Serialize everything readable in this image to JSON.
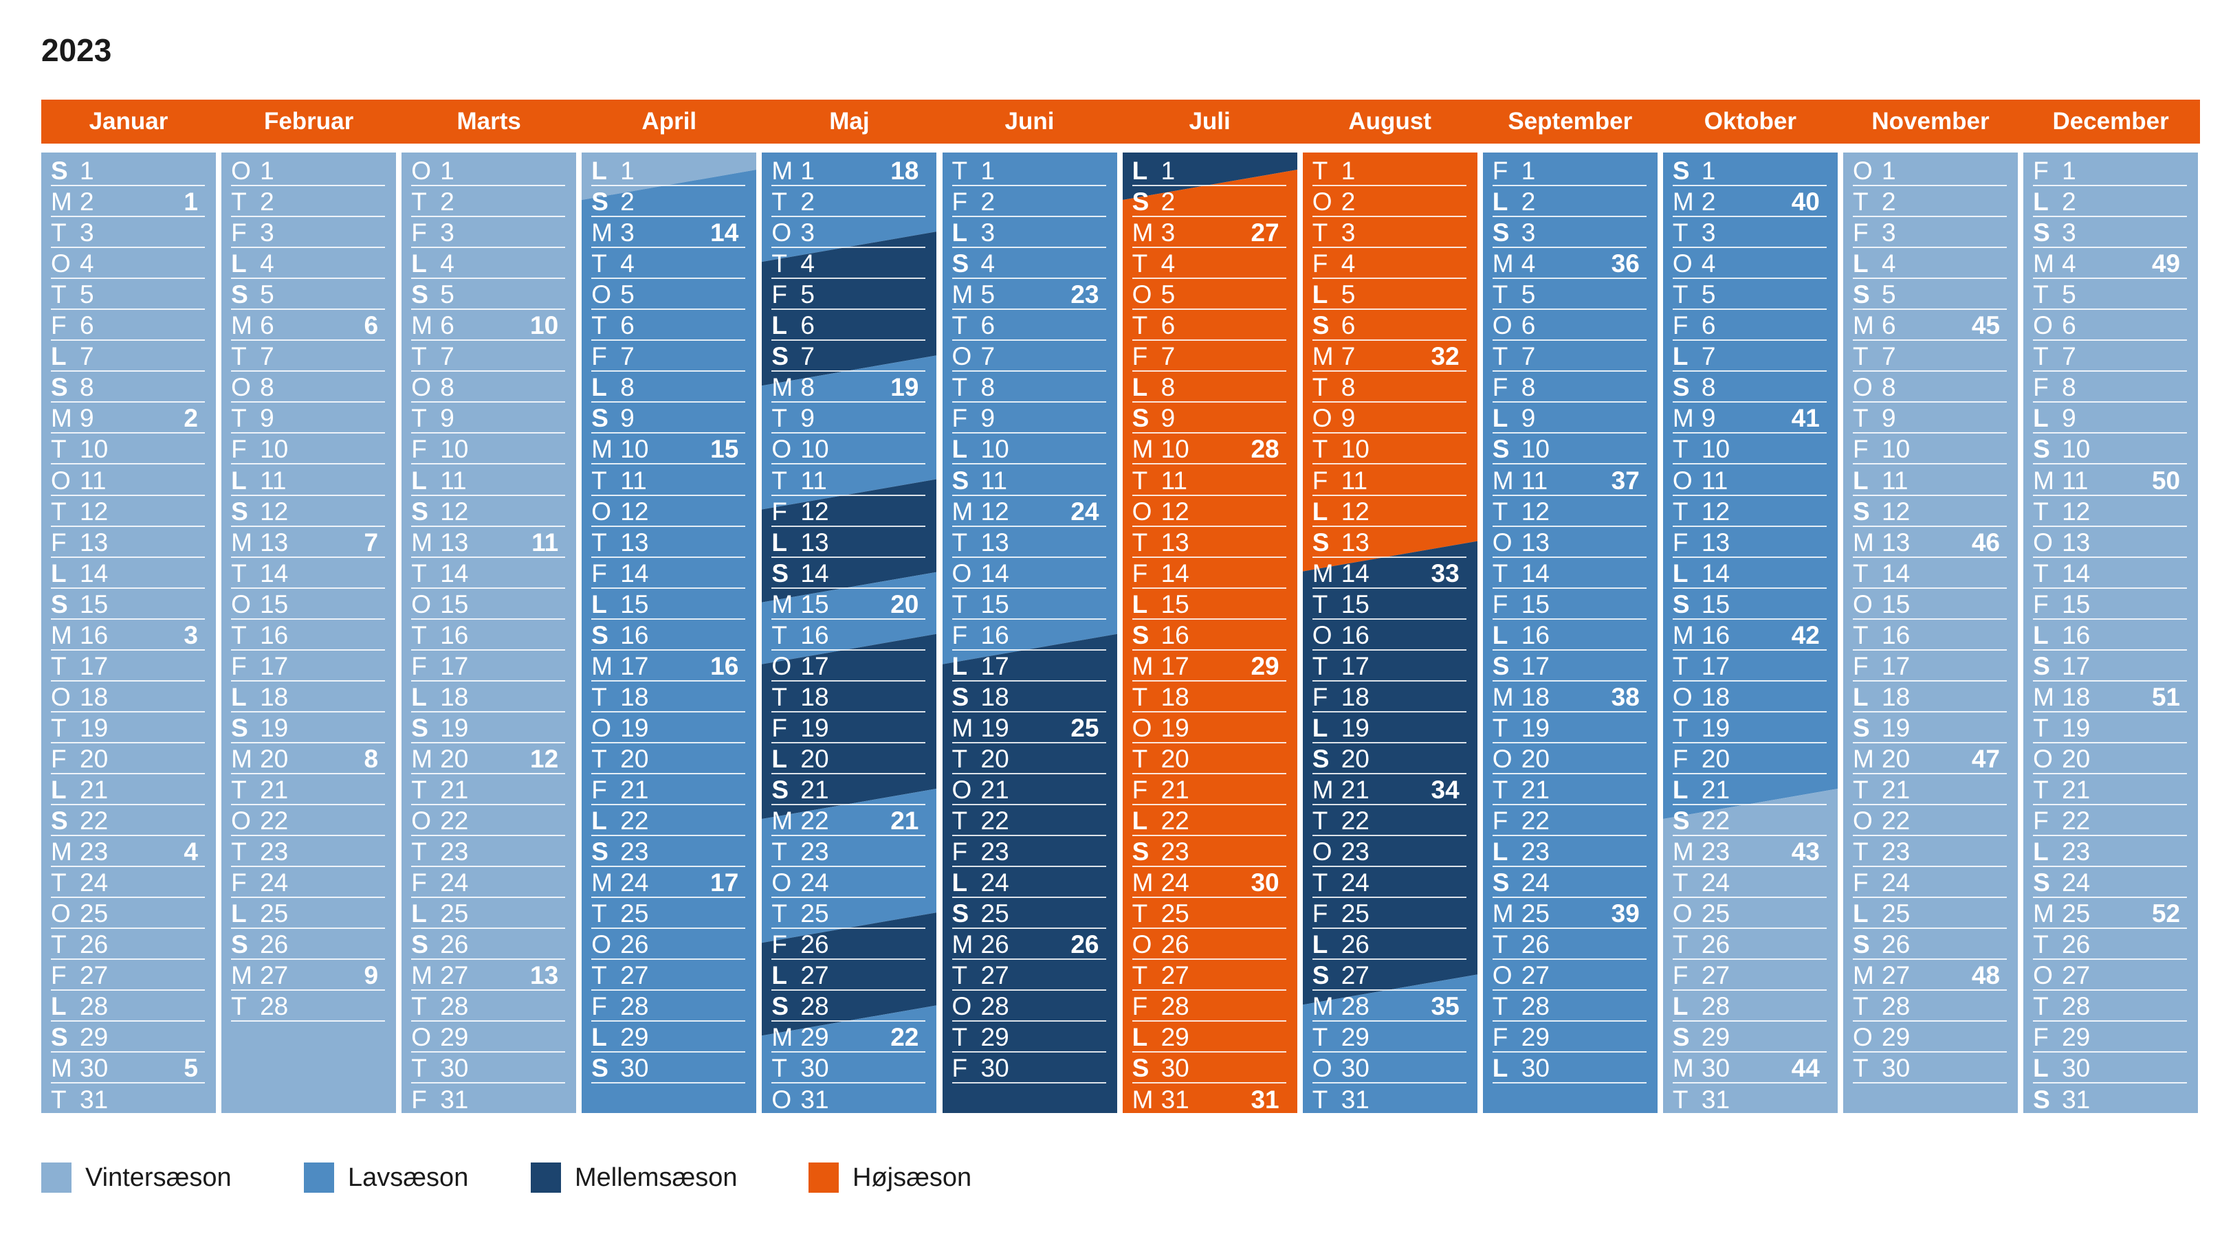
{
  "title": "2023",
  "colors": {
    "header": "#e8590c",
    "vinter": "#8bb0d3",
    "lav": "#4e8bc2",
    "mellem": "#1c446e",
    "hoj": "#e8590c"
  },
  "legend": [
    {
      "label": "Vintersæson",
      "season": "vinter"
    },
    {
      "label": "Lavsæson",
      "season": "lav"
    },
    {
      "label": "Mellemsæson",
      "season": "mellem"
    },
    {
      "label": "Højsæson",
      "season": "hoj"
    }
  ],
  "months": [
    {
      "name": "Januar",
      "first_weekday": 6,
      "days": 31,
      "weeks": {
        "2": "1",
        "9": "2",
        "16": "3",
        "23": "4",
        "30": "5"
      },
      "seasons": [
        {
          "season": "vinter",
          "from": 1,
          "to": 31
        }
      ]
    },
    {
      "name": "Februar",
      "first_weekday": 2,
      "days": 28,
      "weeks": {
        "6": "6",
        "13": "7",
        "20": "8",
        "27": "9"
      },
      "seasons": [
        {
          "season": "vinter",
          "from": 1,
          "to": 28
        }
      ]
    },
    {
      "name": "Marts",
      "first_weekday": 2,
      "days": 31,
      "weeks": {
        "6": "10",
        "13": "11",
        "20": "12",
        "27": "13"
      },
      "seasons": [
        {
          "season": "vinter",
          "from": 1,
          "to": 31
        }
      ]
    },
    {
      "name": "April",
      "first_weekday": 5,
      "days": 30,
      "weeks": {
        "3": "14",
        "10": "15",
        "17": "16",
        "24": "17"
      },
      "seasons": [
        {
          "season": "vinter",
          "from": 1,
          "to": 1
        },
        {
          "season": "lav",
          "from": 2,
          "to": 30
        }
      ]
    },
    {
      "name": "Maj",
      "first_weekday": 0,
      "days": 31,
      "weeks": {
        "1": "18",
        "8": "19",
        "15": "20",
        "22": "21",
        "29": "22"
      },
      "seasons": [
        {
          "season": "lav",
          "from": 1,
          "to": 3
        },
        {
          "season": "mellem",
          "from": 4,
          "to": 7
        },
        {
          "season": "lav",
          "from": 8,
          "to": 11
        },
        {
          "season": "mellem",
          "from": 12,
          "to": 14
        },
        {
          "season": "lav",
          "from": 15,
          "to": 16
        },
        {
          "season": "mellem",
          "from": 17,
          "to": 21
        },
        {
          "season": "lav",
          "from": 22,
          "to": 25
        },
        {
          "season": "mellem",
          "from": 26,
          "to": 28
        },
        {
          "season": "lav",
          "from": 29,
          "to": 31
        }
      ]
    },
    {
      "name": "Juni",
      "first_weekday": 3,
      "days": 30,
      "weeks": {
        "5": "23",
        "12": "24",
        "19": "25",
        "26": "26"
      },
      "seasons": [
        {
          "season": "lav",
          "from": 1,
          "to": 16
        },
        {
          "season": "mellem",
          "from": 17,
          "to": 30
        }
      ]
    },
    {
      "name": "Juli",
      "first_weekday": 5,
      "days": 31,
      "weeks": {
        "3": "27",
        "10": "28",
        "17": "29",
        "24": "30",
        "31": "31"
      },
      "seasons": [
        {
          "season": "mellem",
          "from": 1,
          "to": 1
        },
        {
          "season": "hoj",
          "from": 2,
          "to": 31
        }
      ]
    },
    {
      "name": "August",
      "first_weekday": 1,
      "days": 31,
      "weeks": {
        "7": "32",
        "14": "33",
        "21": "34",
        "28": "35"
      },
      "seasons": [
        {
          "season": "hoj",
          "from": 1,
          "to": 13
        },
        {
          "season": "mellem",
          "from": 14,
          "to": 27
        },
        {
          "season": "lav",
          "from": 28,
          "to": 31
        }
      ]
    },
    {
      "name": "September",
      "first_weekday": 4,
      "days": 30,
      "weeks": {
        "4": "36",
        "11": "37",
        "18": "38",
        "25": "39"
      },
      "seasons": [
        {
          "season": "lav",
          "from": 1,
          "to": 30
        }
      ]
    },
    {
      "name": "Oktober",
      "first_weekday": 6,
      "days": 31,
      "weeks": {
        "2": "40",
        "9": "41",
        "16": "42",
        "23": "43",
        "30": "44"
      },
      "seasons": [
        {
          "season": "lav",
          "from": 1,
          "to": 21
        },
        {
          "season": "vinter",
          "from": 22,
          "to": 31
        }
      ]
    },
    {
      "name": "November",
      "first_weekday": 2,
      "days": 30,
      "weeks": {
        "6": "45",
        "13": "46",
        "20": "47",
        "27": "48"
      },
      "seasons": [
        {
          "season": "vinter",
          "from": 1,
          "to": 30
        }
      ]
    },
    {
      "name": "December",
      "first_weekday": 4,
      "days": 31,
      "weeks": {
        "4": "49",
        "11": "50",
        "18": "51",
        "25": "52"
      },
      "seasons": [
        {
          "season": "vinter",
          "from": 1,
          "to": 31
        }
      ]
    }
  ],
  "weekday_letters": [
    "M",
    "T",
    "O",
    "T",
    "F",
    "L",
    "S"
  ],
  "weekend_bold": [
    "L",
    "S"
  ]
}
